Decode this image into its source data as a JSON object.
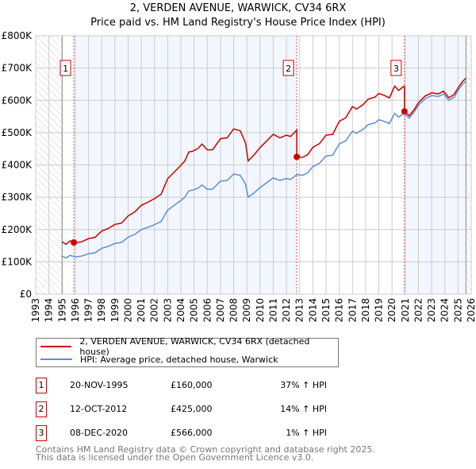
{
  "chart_data": {
    "type": "line",
    "title": "2, VERDEN AVENUE, WARWICK, CV34 6RX",
    "subtitle": "Price paid vs. HM Land Registry's House Price Index (HPI)",
    "xlim": [
      1993,
      2026
    ],
    "ylim": [
      0,
      800000
    ],
    "yticks": [
      {
        "v": 0,
        "l": "£0"
      },
      {
        "v": 100000,
        "l": "£100K"
      },
      {
        "v": 200000,
        "l": "£200K"
      },
      {
        "v": 300000,
        "l": "£300K"
      },
      {
        "v": 400000,
        "l": "£400K"
      },
      {
        "v": 500000,
        "l": "£500K"
      },
      {
        "v": 600000,
        "l": "£600K"
      },
      {
        "v": 700000,
        "l": "£700K"
      },
      {
        "v": 800000,
        "l": "£800K"
      }
    ],
    "xticks": [
      "1993",
      "1994",
      "1995",
      "1996",
      "1997",
      "1998",
      "1999",
      "2000",
      "2001",
      "2002",
      "2003",
      "2004",
      "2005",
      "2006",
      "2007",
      "2008",
      "2009",
      "2010",
      "2011",
      "2012",
      "2013",
      "2014",
      "2015",
      "2016",
      "2017",
      "2018",
      "2019",
      "2020",
      "2021",
      "2022",
      "2023",
      "2024",
      "2025",
      "2026"
    ],
    "data_range": [
      1995.0,
      2025.6
    ],
    "hpi": {
      "name": "HPI: Average price, detached house, Warwick",
      "color": "#5b8fd4",
      "x": [
        1995.0,
        1995.3,
        1995.6,
        1996.0,
        1996.5,
        1997.0,
        1997.5,
        1998.0,
        1998.5,
        1999.0,
        1999.5,
        2000.0,
        2000.5,
        2001.0,
        2001.5,
        2002.0,
        2002.5,
        2003.0,
        2003.5,
        2004.0,
        2004.3,
        2004.6,
        2004.9,
        2005.3,
        2005.6,
        2006.0,
        2006.4,
        2007.0,
        2007.5,
        2008.0,
        2008.5,
        2008.9,
        2009.1,
        2009.5,
        2010.0,
        2010.5,
        2011.0,
        2011.5,
        2012.0,
        2012.3,
        2012.8,
        2013.2,
        2013.6,
        2014.0,
        2014.5,
        2015.0,
        2015.5,
        2016.0,
        2016.5,
        2017.0,
        2017.3,
        2017.8,
        2018.2,
        2018.7,
        2019.0,
        2019.4,
        2019.8,
        2020.2,
        2020.5,
        2020.9,
        2021.3,
        2021.7,
        2022.0,
        2022.5,
        2023.0,
        2023.5,
        2023.9,
        2024.3,
        2024.7,
        2025.0,
        2025.3,
        2025.6
      ],
      "y": [
        118000,
        112000,
        120000,
        115000,
        118000,
        125000,
        128000,
        142000,
        148000,
        157000,
        160000,
        176000,
        185000,
        200000,
        207000,
        215000,
        225000,
        260000,
        275000,
        290000,
        300000,
        320000,
        322000,
        328000,
        338000,
        325000,
        325000,
        350000,
        352000,
        372000,
        368000,
        340000,
        300000,
        312000,
        330000,
        345000,
        360000,
        352000,
        358000,
        355000,
        370000,
        368000,
        375000,
        395000,
        405000,
        428000,
        430000,
        465000,
        475000,
        505000,
        498000,
        510000,
        525000,
        530000,
        540000,
        535000,
        528000,
        560000,
        548000,
        560000,
        545000,
        565000,
        585000,
        605000,
        615000,
        612000,
        620000,
        600000,
        610000,
        630000,
        648000,
        660000
      ]
    },
    "price": {
      "name": "2, VERDEN AVENUE, WARWICK, CV34 6RX (detached house)",
      "color": "#cc0000"
    },
    "sales": [
      {
        "n": "1",
        "x": 1995.89,
        "date": "20-NOV-1995",
        "price": 160000,
        "price_label": "£160,000",
        "hpi": "37% ↑ HPI"
      },
      {
        "n": "2",
        "x": 2012.78,
        "date": "12-OCT-2012",
        "price": 425000,
        "price_label": "£425,000",
        "hpi": "14% ↑ HPI"
      },
      {
        "n": "3",
        "x": 2020.94,
        "date": "08-DEC-2020",
        "price": 566000,
        "price_label": "£566,000",
        "hpi": "1% ↑ HPI"
      }
    ]
  },
  "legend": {
    "price": "2, VERDEN AVENUE, WARWICK, CV34 6RX (detached house)",
    "hpi": "HPI: Average price, detached house, Warwick"
  },
  "footer": {
    "line1": "Contains HM Land Registry data © Crown copyright and database right 2025.",
    "line2": "This data is licensed under the Open Government Licence v3.0."
  }
}
